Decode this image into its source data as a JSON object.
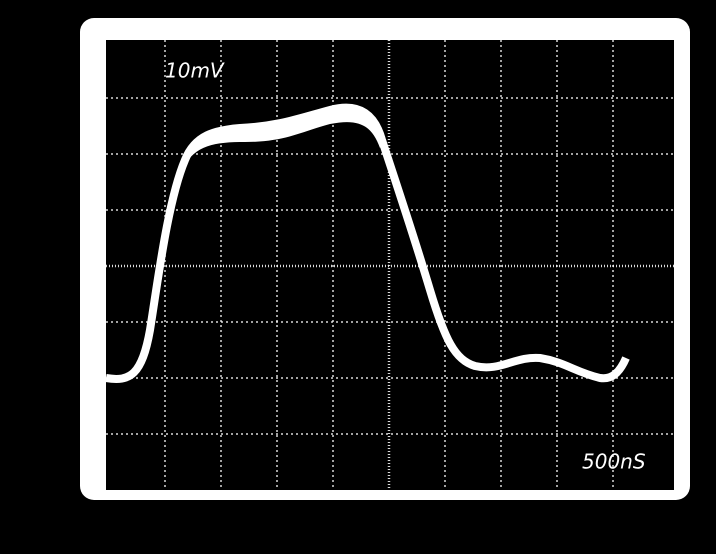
{
  "screen": {
    "volts_per_div": "10mV",
    "time_per_div": "500nS"
  }
}
